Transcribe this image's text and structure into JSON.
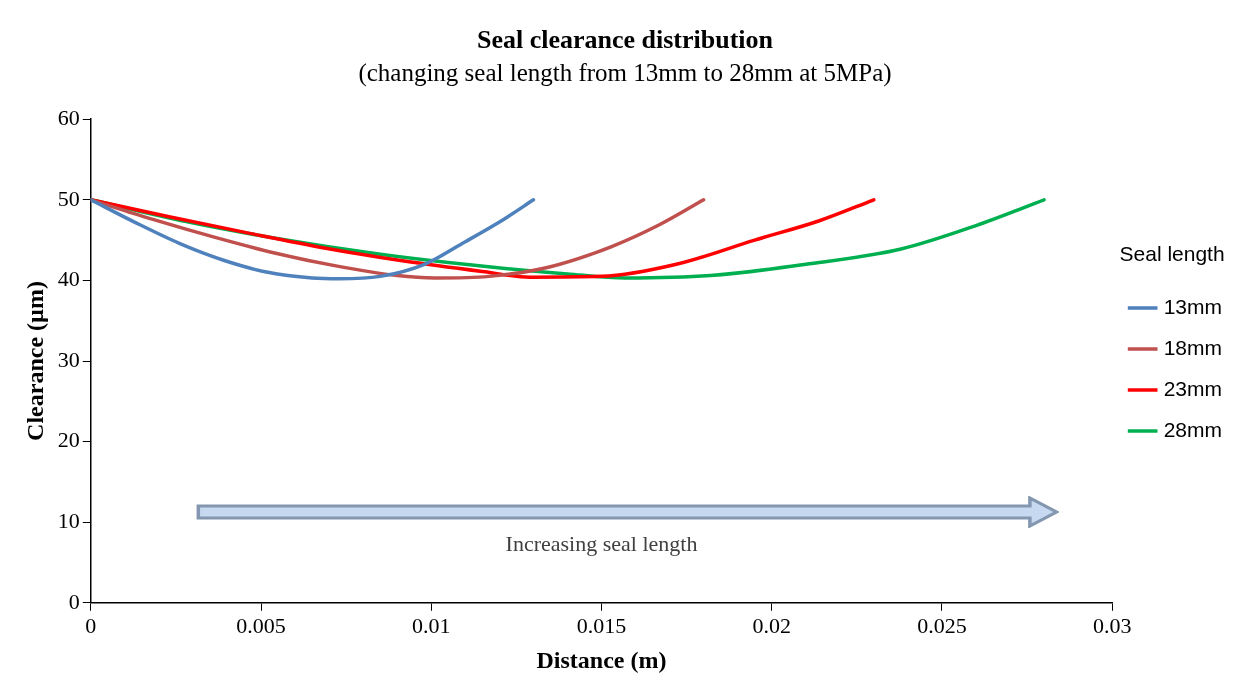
{
  "chart_data": {
    "type": "line",
    "title": "Seal clearance distribution",
    "subtitle": "(changing seal length from 13mm to 28mm at 5MPa)",
    "xlabel": "Distance (m)",
    "ylabel": "Clearance (µm)",
    "legend_title": "Seal length",
    "legend": "right",
    "grid": false,
    "marker": "none",
    "line_style": "solid",
    "xlim": [
      0,
      0.03
    ],
    "xticks": [
      0,
      0.005,
      0.01,
      0.015,
      0.02,
      0.025,
      0.03
    ],
    "ylim": [
      0,
      60
    ],
    "yticks": [
      0,
      10,
      20,
      30,
      40,
      50,
      60
    ],
    "annotations": [
      "Increasing seal length"
    ],
    "series": [
      {
        "name": "13mm",
        "color": "#4f81bd",
        "x": [
          0,
          0.0013,
          0.0026,
          0.0039,
          0.0052,
          0.0065,
          0.0073,
          0.0085,
          0.0098,
          0.011,
          0.0121,
          0.013
        ],
        "values": [
          50,
          47.2,
          44.6,
          42.5,
          41,
          40.3,
          40.2,
          40.5,
          42,
          44.8,
          47.5,
          50
        ]
      },
      {
        "name": "18mm",
        "color": "#c0504d",
        "x": [
          0,
          0.0018,
          0.0036,
          0.0054,
          0.0072,
          0.009,
          0.0101,
          0.0117,
          0.0135,
          0.0153,
          0.0167,
          0.018
        ],
        "values": [
          50,
          47.6,
          45.4,
          43.4,
          41.8,
          40.6,
          40.3,
          40.5,
          41.7,
          44.2,
          46.9,
          50
        ]
      },
      {
        "name": "23mm",
        "color": "#ff0000",
        "x": [
          0,
          0.0023,
          0.0046,
          0.0069,
          0.0092,
          0.0115,
          0.0129,
          0.015,
          0.0172,
          0.0195,
          0.0214,
          0.023
        ],
        "values": [
          50,
          47.9,
          45.9,
          44,
          42.4,
          41.1,
          40.4,
          40.5,
          42,
          45,
          47.4,
          50
        ]
      },
      {
        "name": "28mm",
        "color": "#00b050",
        "x": [
          0,
          0.0028,
          0.0056,
          0.0084,
          0.0112,
          0.014,
          0.0157,
          0.0182,
          0.021,
          0.0238,
          0.026,
          0.028
        ],
        "values": [
          50,
          47.3,
          45.1,
          43.3,
          41.9,
          40.8,
          40.3,
          40.6,
          42,
          43.9,
          46.8,
          50
        ]
      }
    ]
  }
}
